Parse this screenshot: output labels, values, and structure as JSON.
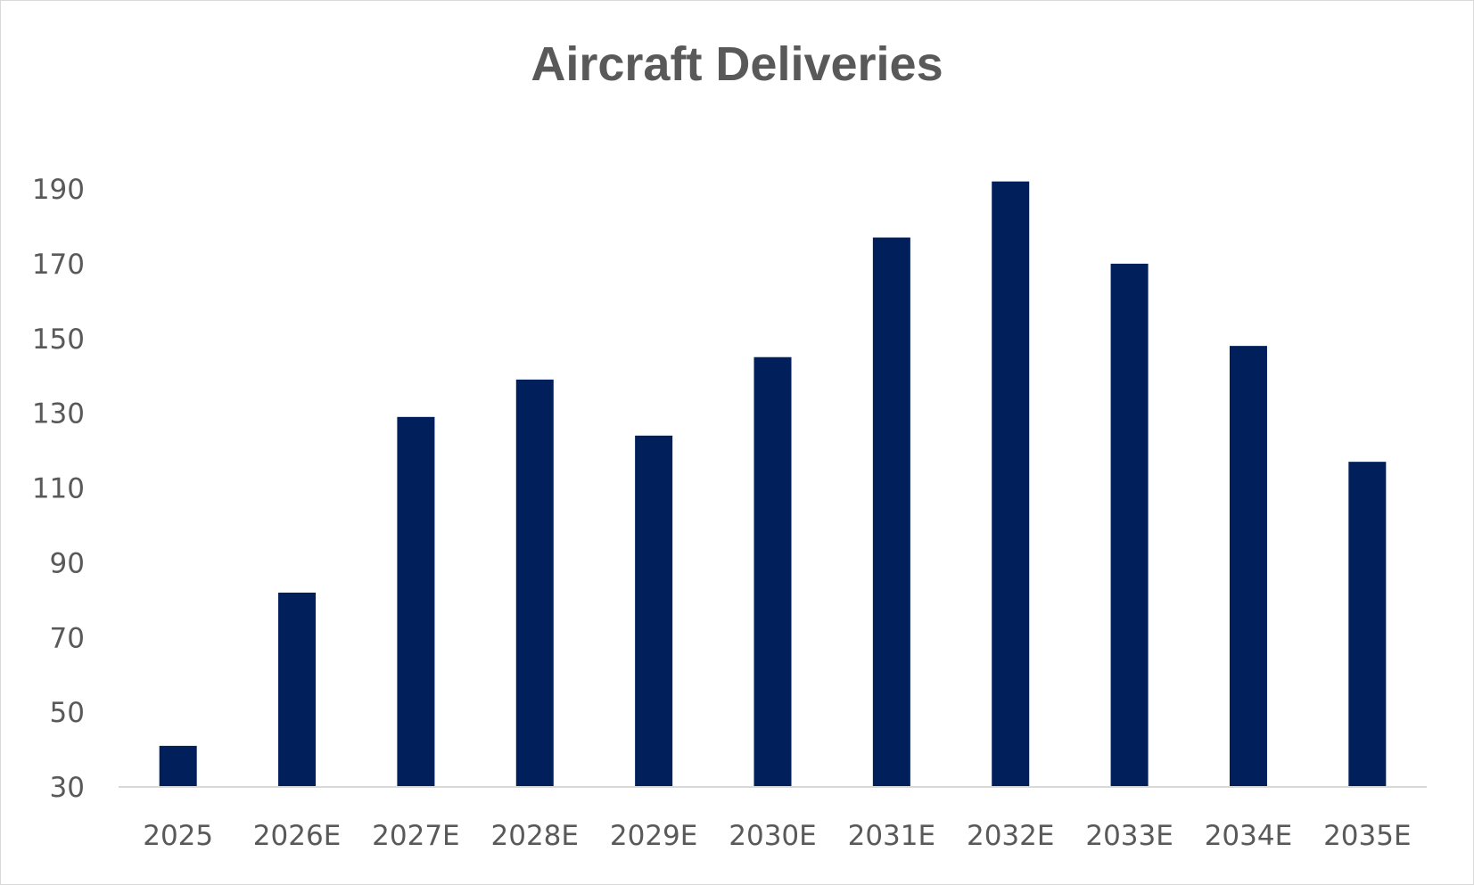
{
  "chart_data": {
    "type": "bar",
    "title": "Aircraft Deliveries",
    "xlabel": "",
    "ylabel": "",
    "categories": [
      "2025",
      "2026E",
      "2027E",
      "2028E",
      "2029E",
      "2030E",
      "2031E",
      "2032E",
      "2033E",
      "2034E",
      "2035E"
    ],
    "values": [
      41,
      82,
      129,
      139,
      124,
      145,
      177,
      192,
      170,
      148,
      117
    ],
    "ylim": [
      30,
      190
    ],
    "yticks": [
      "30",
      "50",
      "70",
      "90",
      "110",
      "130",
      "150",
      "170",
      "190"
    ],
    "bar_color": "#001f5b",
    "grid": false,
    "legend": "none"
  }
}
